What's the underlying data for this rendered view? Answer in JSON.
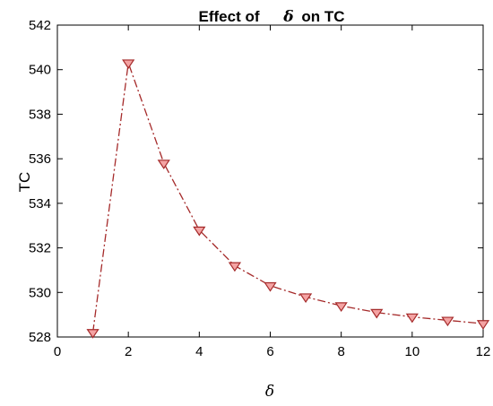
{
  "chart_data": {
    "type": "line",
    "title_prefix": "Effect of",
    "title_symbol": "δ",
    "title_suffix": "on TC",
    "xlabel": "δ",
    "ylabel": "TC",
    "xlim": [
      0,
      12
    ],
    "ylim": [
      528,
      542
    ],
    "xticks": [
      "0",
      "2",
      "4",
      "6",
      "8",
      "10",
      "12"
    ],
    "yticks": [
      "528",
      "530",
      "532",
      "534",
      "536",
      "538",
      "540",
      "542"
    ],
    "grid": false,
    "series": [
      {
        "x": [
          1,
          2,
          3,
          4,
          5,
          6,
          7,
          8,
          9,
          10,
          11,
          12
        ],
        "y": [
          528.2,
          540.3,
          535.8,
          532.8,
          531.2,
          530.3,
          529.8,
          529.4,
          529.1,
          528.9,
          528.75,
          528.6
        ],
        "line_style": "dash-dot",
        "marker": "down-triangle",
        "color": "#a52a2a",
        "marker_fill": "#f4a3a3"
      }
    ]
  }
}
